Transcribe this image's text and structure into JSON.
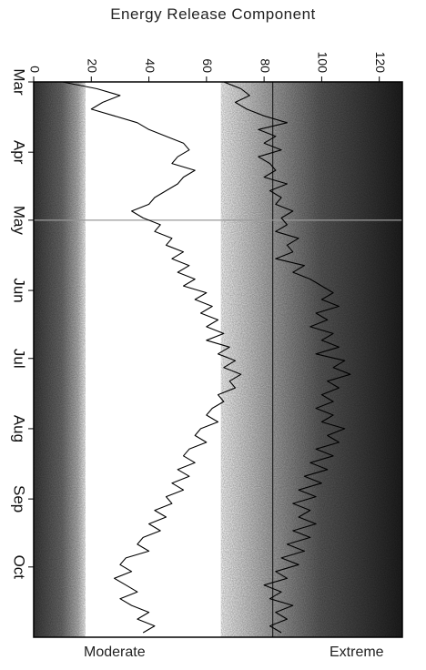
{
  "chart_data": {
    "type": "line",
    "title": "Energy Release Component",
    "orientation": "rotated (time runs top-to-bottom, value increases left-to-right)",
    "value_axis": {
      "range": [
        0,
        128
      ],
      "ticks": [
        0,
        20,
        40,
        60,
        80,
        100,
        120
      ],
      "tick_labels": [
        "0",
        "20",
        "40",
        "60",
        "80",
        "100",
        "120"
      ]
    },
    "time_axis": {
      "months": [
        "Mar",
        "Apr",
        "May",
        "Jun",
        "Jul",
        "Aug",
        "Sep",
        "Oct"
      ]
    },
    "reference_lines": {
      "vertical_value": 83,
      "horizontal_date": "May 1"
    },
    "background_bands": [
      {
        "from": 0,
        "to": 18,
        "shade": "darkening-toward-left"
      },
      {
        "from": 18,
        "to": 65,
        "shade": "white"
      },
      {
        "from": 65,
        "to": 128,
        "shade": "darkening-toward-right"
      }
    ],
    "scale_labels": {
      "low": "Moderate",
      "high": "Extreme"
    },
    "series": [
      {
        "line": "upper",
        "points": [
          [
            0,
            66
          ],
          [
            3,
            72
          ],
          [
            6,
            75
          ],
          [
            9,
            70
          ],
          [
            12,
            74
          ],
          [
            15,
            80
          ],
          [
            18,
            88
          ],
          [
            21,
            78
          ],
          [
            24,
            84
          ],
          [
            27,
            80
          ],
          [
            30,
            86
          ],
          [
            33,
            78
          ],
          [
            36,
            82
          ],
          [
            39,
            84
          ],
          [
            42,
            80
          ],
          [
            45,
            88
          ],
          [
            48,
            82
          ],
          [
            51,
            86
          ],
          [
            54,
            84
          ],
          [
            57,
            90
          ],
          [
            60,
            86
          ],
          [
            63,
            88
          ],
          [
            66,
            84
          ],
          [
            69,
            92
          ],
          [
            72,
            88
          ],
          [
            75,
            90
          ],
          [
            78,
            84
          ],
          [
            81,
            94
          ],
          [
            84,
            90
          ],
          [
            87,
            96
          ],
          [
            90,
            100
          ],
          [
            93,
            104
          ],
          [
            96,
            100
          ],
          [
            99,
            106
          ],
          [
            102,
            98
          ],
          [
            105,
            102
          ],
          [
            108,
            96
          ],
          [
            111,
            104
          ],
          [
            114,
            100
          ],
          [
            117,
            106
          ],
          [
            120,
            98
          ],
          [
            123,
            108
          ],
          [
            126,
            104
          ],
          [
            129,
            110
          ],
          [
            132,
            102
          ],
          [
            135,
            106
          ],
          [
            138,
            100
          ],
          [
            141,
            104
          ],
          [
            144,
            98
          ],
          [
            147,
            104
          ],
          [
            150,
            100
          ],
          [
            153,
            108
          ],
          [
            156,
            102
          ],
          [
            159,
            106
          ],
          [
            162,
            98
          ],
          [
            165,
            104
          ],
          [
            168,
            96
          ],
          [
            171,
            102
          ],
          [
            174,
            94
          ],
          [
            177,
            100
          ],
          [
            180,
            92
          ],
          [
            183,
            98
          ],
          [
            186,
            90
          ],
          [
            189,
            96
          ],
          [
            192,
            92
          ],
          [
            195,
            98
          ],
          [
            198,
            90
          ],
          [
            201,
            96
          ],
          [
            204,
            88
          ],
          [
            207,
            94
          ],
          [
            210,
            86
          ],
          [
            213,
            92
          ],
          [
            216,
            84
          ],
          [
            219,
            88
          ],
          [
            222,
            80
          ],
          [
            225,
            86
          ],
          [
            228,
            82
          ],
          [
            231,
            90
          ],
          [
            234,
            84
          ],
          [
            237,
            88
          ],
          [
            240,
            82
          ],
          [
            243,
            86
          ]
        ]
      },
      {
        "line": "lower",
        "points": [
          [
            0,
            10
          ],
          [
            3,
            22
          ],
          [
            6,
            30
          ],
          [
            9,
            24
          ],
          [
            12,
            20
          ],
          [
            15,
            28
          ],
          [
            18,
            36
          ],
          [
            21,
            40
          ],
          [
            24,
            46
          ],
          [
            27,
            52
          ],
          [
            30,
            54
          ],
          [
            33,
            50
          ],
          [
            36,
            48
          ],
          [
            39,
            56
          ],
          [
            42,
            52
          ],
          [
            45,
            50
          ],
          [
            48,
            46
          ],
          [
            51,
            42
          ],
          [
            54,
            40
          ],
          [
            57,
            34
          ],
          [
            60,
            38
          ],
          [
            63,
            44
          ],
          [
            66,
            42
          ],
          [
            69,
            48
          ],
          [
            72,
            46
          ],
          [
            75,
            52
          ],
          [
            78,
            48
          ],
          [
            81,
            54
          ],
          [
            84,
            50
          ],
          [
            87,
            56
          ],
          [
            90,
            52
          ],
          [
            93,
            60
          ],
          [
            96,
            56
          ],
          [
            99,
            62
          ],
          [
            102,
            58
          ],
          [
            105,
            64
          ],
          [
            108,
            60
          ],
          [
            111,
            66
          ],
          [
            114,
            60
          ],
          [
            117,
            68
          ],
          [
            120,
            64
          ],
          [
            123,
            70
          ],
          [
            126,
            66
          ],
          [
            129,
            72
          ],
          [
            132,
            68
          ],
          [
            135,
            70
          ],
          [
            138,
            64
          ],
          [
            141,
            66
          ],
          [
            144,
            62
          ],
          [
            147,
            60
          ],
          [
            150,
            64
          ],
          [
            153,
            58
          ],
          [
            156,
            56
          ],
          [
            159,
            60
          ],
          [
            162,
            54
          ],
          [
            165,
            52
          ],
          [
            168,
            56
          ],
          [
            171,
            50
          ],
          [
            174,
            54
          ],
          [
            177,
            48
          ],
          [
            180,
            52
          ],
          [
            183,
            46
          ],
          [
            186,
            48
          ],
          [
            189,
            42
          ],
          [
            192,
            46
          ],
          [
            195,
            40
          ],
          [
            198,
            44
          ],
          [
            201,
            38
          ],
          [
            204,
            36
          ],
          [
            207,
            40
          ],
          [
            210,
            32
          ],
          [
            213,
            30
          ],
          [
            216,
            34
          ],
          [
            219,
            28
          ],
          [
            222,
            32
          ],
          [
            225,
            36
          ],
          [
            228,
            30
          ],
          [
            231,
            34
          ],
          [
            234,
            40
          ],
          [
            237,
            36
          ],
          [
            240,
            42
          ],
          [
            243,
            38
          ]
        ]
      }
    ]
  },
  "labels": {
    "title": "Energy Release Component",
    "moderate": "Moderate",
    "extreme": "Extreme"
  }
}
